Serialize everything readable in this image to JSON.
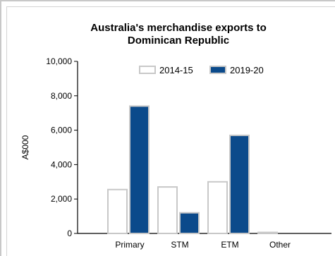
{
  "chart_data": {
    "type": "bar",
    "title_lines": [
      "Australia's merchandise exports to",
      "Dominican Republic"
    ],
    "ylabel": "A$000",
    "xlabel": "",
    "ylim": [
      0,
      10000
    ],
    "yticks": [
      0,
      2000,
      4000,
      6000,
      8000,
      10000
    ],
    "ytick_labels": [
      "0",
      "2,000",
      "4,000",
      "6,000",
      "8,000",
      "10,000"
    ],
    "categories": [
      "Primary",
      "STM",
      "ETM",
      "Other"
    ],
    "series": [
      {
        "name": "2014-15",
        "values": [
          2550,
          2700,
          3000,
          60
        ],
        "fill": "#ffffff",
        "stroke": "#c8c8c8"
      },
      {
        "name": "2019-20",
        "values": [
          7400,
          1200,
          5700,
          0
        ],
        "fill": "#0b4a8b",
        "stroke": "#c8c8c8"
      }
    ],
    "legend_position": "top-right",
    "grid": false
  }
}
